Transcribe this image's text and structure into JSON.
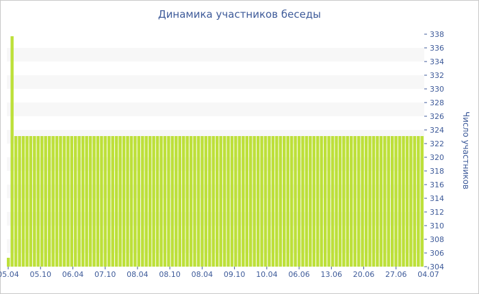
{
  "chart_data": {
    "type": "bar",
    "title": "Динамика участников беседы",
    "xlabel": "",
    "ylabel": "Число участников",
    "ylim": [
      304,
      338
    ],
    "y_ticks": [
      304,
      306,
      308,
      310,
      312,
      314,
      316,
      318,
      320,
      322,
      324,
      326,
      328,
      330,
      332,
      334,
      336,
      338
    ],
    "x_tick_labels": [
      "05.04",
      "05.10",
      "06.04",
      "07.10",
      "08.04",
      "08.10",
      "08.04",
      "09.10",
      "10.04",
      "06.06",
      "13.06",
      "20.06",
      "27.06",
      "04.07"
    ],
    "grid": "horizontal bands",
    "bar_color": "#bde03a",
    "values": [
      305.3,
      337.7,
      323.1,
      323.1,
      323.1,
      323.1,
      323.1,
      323.1,
      323.1,
      323.1,
      323.1,
      323.1,
      323.1,
      323.1,
      323.1,
      323.1,
      323.1,
      323.1,
      323.1,
      323.1,
      323.1,
      323.1,
      323.1,
      323.1,
      323.1,
      323.1,
      323.1,
      323.1,
      323.1,
      323.1,
      323.1,
      323.1,
      323.1,
      323.1,
      323.1,
      323.1,
      323.1,
      323.1,
      323.1,
      323.1,
      323.1,
      323.1,
      323.1,
      323.1,
      323.1,
      323.1,
      323.1,
      323.1,
      323.1,
      323.1,
      323.1,
      323.1,
      323.1,
      323.1,
      323.1,
      323.1,
      323.1,
      323.1,
      323.1,
      323.1,
      323.1,
      323.1,
      323.1,
      323.1,
      323.1,
      323.1,
      323.1,
      323.1,
      323.1,
      323.1,
      323.1,
      323.1,
      323.1,
      323.1,
      323.1,
      323.1,
      323.1,
      323.1,
      323.1,
      323.1,
      323.1,
      323.1,
      323.1,
      323.1,
      323.1,
      323.1,
      323.1,
      323.1,
      323.1,
      323.1,
      323.1,
      323.1,
      323.1,
      323.1,
      323.1,
      323.1,
      323.1,
      323.1,
      323.1,
      323.1,
      323.1,
      323.1,
      323.1,
      323.1,
      323.1,
      323.1,
      323.1,
      323.1,
      323.1,
      323.1,
      323.1,
      323.1
    ]
  }
}
